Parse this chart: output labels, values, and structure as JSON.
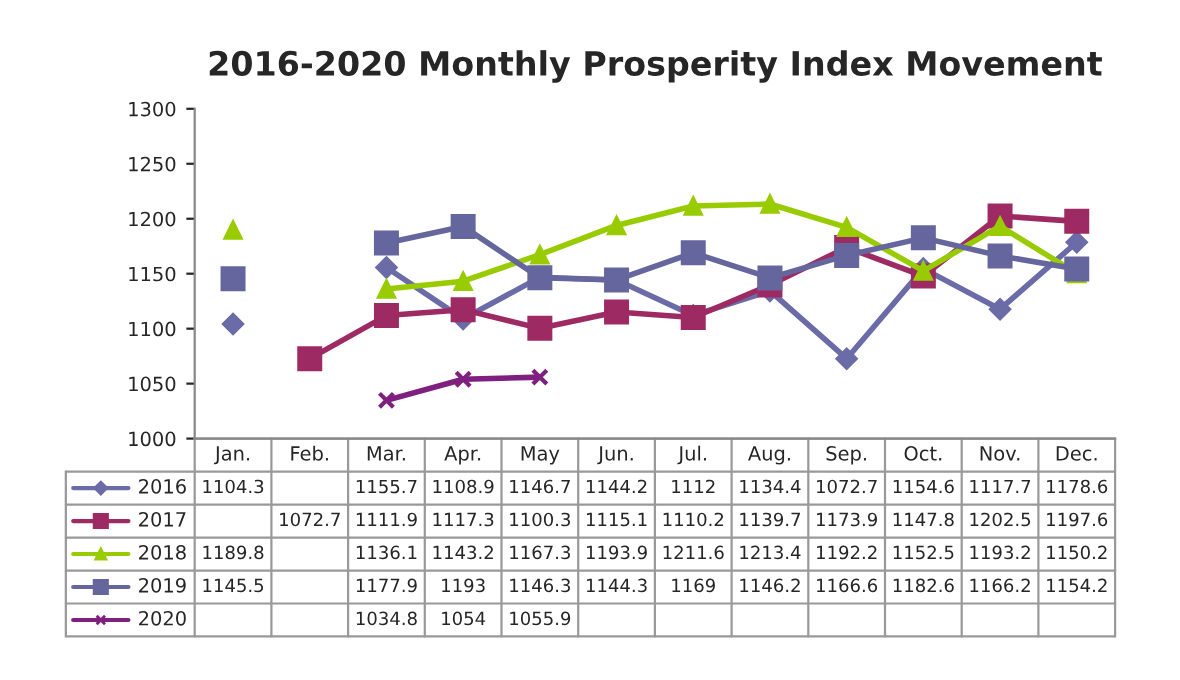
{
  "chart_data": {
    "type": "line",
    "title": "2016-2020 Monthly Prosperity Index Movement",
    "categories": [
      "Jan.",
      "Feb.",
      "Mar.",
      "Apr.",
      "May",
      "Jun.",
      "Jul.",
      "Aug.",
      "Sep.",
      "Oct.",
      "Nov.",
      "Dec."
    ],
    "series": [
      {
        "name": "2016",
        "color": "#6b6ba8",
        "marker": "diamond",
        "values": [
          1104.3,
          null,
          1155.7,
          1108.9,
          1146.7,
          1144.2,
          1112,
          1134.4,
          1072.7,
          1154.6,
          1117.7,
          1178.6
        ]
      },
      {
        "name": "2017",
        "color": "#9e2a63",
        "marker": "square",
        "values": [
          null,
          1072.7,
          1111.9,
          1117.3,
          1100.3,
          1115.1,
          1110.2,
          1139.7,
          1173.9,
          1147.8,
          1202.5,
          1197.6
        ]
      },
      {
        "name": "2018",
        "color": "#99cc00",
        "marker": "triangle",
        "values": [
          1189.8,
          null,
          1136.1,
          1143.2,
          1167.3,
          1193.9,
          1211.6,
          1213.4,
          1192.2,
          1152.5,
          1193.2,
          1150.2
        ]
      },
      {
        "name": "2019",
        "color": "#66669e",
        "marker": "square",
        "values": [
          1145.5,
          null,
          1177.9,
          1193,
          1146.3,
          1144.3,
          1169,
          1146.2,
          1166.6,
          1182.6,
          1166.2,
          1154.2
        ]
      },
      {
        "name": "2020",
        "color": "#7f1f7f",
        "marker": "cross",
        "values": [
          null,
          null,
          1034.8,
          1054,
          1055.9,
          null,
          null,
          null,
          null,
          null,
          null,
          null
        ]
      }
    ],
    "ylim": [
      1000,
      1300
    ],
    "yticks": [
      1000,
      1050,
      1100,
      1150,
      1200,
      1250,
      1300
    ],
    "grid": false,
    "data_labels": true,
    "legend": "bottom left"
  }
}
